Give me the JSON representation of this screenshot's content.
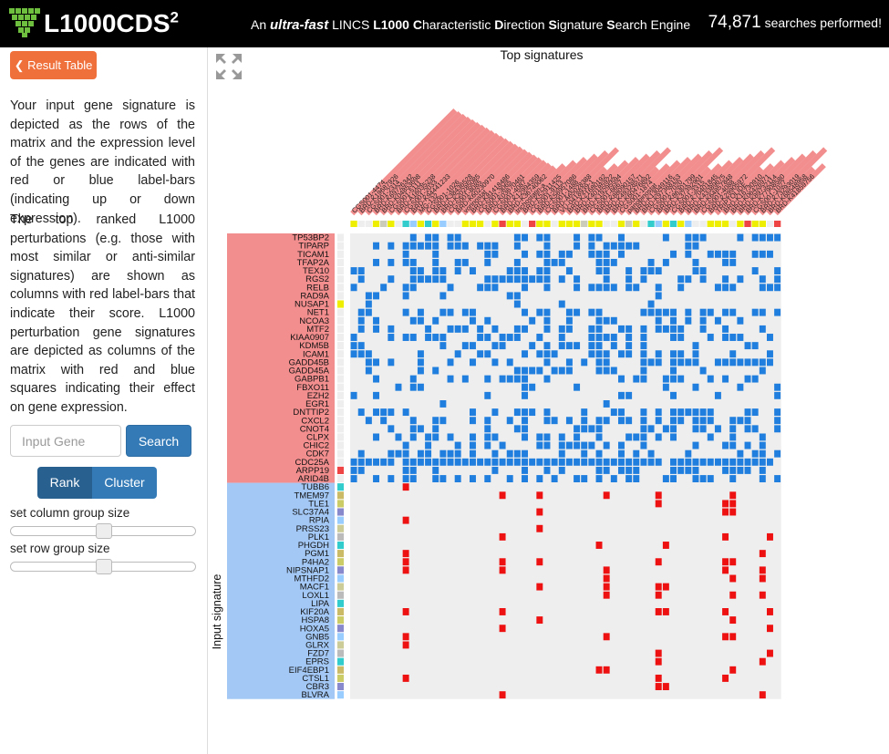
{
  "header": {
    "app_name": "L1000CDS",
    "app_name_sup": "2",
    "tagline": {
      "an": "An ",
      "ultra_fast": "ultra-fast",
      "lincs": " LINCS ",
      "l1000": "L1000",
      "c": "C",
      "c_rest": "haracteristic ",
      "d": "D",
      "d_rest": "irection ",
      "s": "S",
      "s_rest": "ignature ",
      "s2": "S",
      "s2_rest": "earch Engine"
    },
    "search_count": "74,871",
    "search_count_label": " searches performed!"
  },
  "sidebar": {
    "result_button": "Result Table",
    "description_1": "Your input gene signature is depicted as the rows of the matrix and the expression level of the genes are indicated with red or blue label-bars (indicating up or down expression).",
    "description_2": "The top ranked L1000 perturbations (e.g. those with most similar or anti-similar signatures) are shown as columns with red label-bars that indicate their score. L1000 perturbation gene signatures are depicted as columns of the matrix with red and blue squares indicating their effect on gene expression.",
    "gene_input_placeholder": "Input Gene",
    "search_button": "Search",
    "rank_button": "Rank",
    "cluster_button": "Cluster",
    "column_group_label": "set column group size",
    "row_group_label": "set row group size"
  },
  "colors": {
    "up": "#f28e8e",
    "down": "#a3c8f5",
    "cell_red": "#ee1111",
    "cell_blue": "#1f7ede",
    "cell_empty": "#eeeeee"
  },
  "main": {
    "plot_title": "Top signatures",
    "input_signature_label": "Input signature",
    "up_genes": [
      "TP53BP2",
      "TIPARP",
      "TICAM1",
      "TFAP2A",
      "TEX10",
      "RGS2",
      "RELB",
      "RAD9A",
      "NUSAP1",
      "NET1",
      "NCOA3",
      "MTF2",
      "KIAA0907",
      "KDM5B",
      "ICAM1",
      "GADD45B",
      "GADD45A",
      "GABPB1",
      "FBXO11",
      "EZH2",
      "EGR1",
      "DNTTIP2",
      "CXCL2",
      "CNOT4",
      "CLPX",
      "CHIC2",
      "CDK7",
      "CDC25A",
      "ARPP19",
      "ARID4B"
    ],
    "down_genes": [
      "TUBB6",
      "TMEM97",
      "TLE1",
      "SLC37A4",
      "RPIA",
      "PRSS23",
      "PLK1",
      "PHGDH",
      "PGM1",
      "P4HA2",
      "NIPSNAP1",
      "MTHFD2",
      "MACF1",
      "LOXL1",
      "LIPA",
      "KIF20A",
      "HSPA8",
      "HOXA5",
      "GNB5",
      "GLRX",
      "FZD7",
      "EPRS",
      "EIF4EBP1",
      "CTSL1",
      "CBR3",
      "BLVRA"
    ],
    "column_labels": [
      "CGS001-4474",
      "BRD-K19687926",
      "CGS001-2314",
      "BRD-K69726342",
      "BRD-K04853698",
      "CGS001-5111",
      "BRD-A16035238",
      "CGS001-2033",
      "BRD-K94441233",
      "MG-132",
      "CGS001-1026",
      "BRD-K38436528",
      "BRD-K20285085",
      "CGS001-8085",
      "BRD-K60230970",
      "vorinostat",
      "BRD-K81418486",
      "CGS001-3065",
      "BRD-K03670461",
      "CGS001-4087",
      "BRD-K12994359",
      "BRD-K36740062",
      "trichostatin-a",
      "BRD-K52911425",
      "CGS001-9113",
      "BRD-K56957086",
      "CGS001-1488",
      "BRD-A65028388",
      "VU-0418939-1",
      "BRD-K21680192",
      "BRD-K40185922",
      "BRD-K19295594",
      "CGS001-6667",
      "BRD-K88090157",
      "BRD-K49328571",
      "BRD-K60476892",
      "CGS001-1874",
      "panobinostat",
      "BRD-K13049116",
      "BRD-K97368153",
      "CGS001-7020",
      "BRD-K86301799",
      "BRD-K37392901",
      "CGS001-3315",
      "BRD-K70401845",
      "BRD-K43389675",
      "BRD-K64857848",
      "CGS001-4088",
      "BRD-K29905972",
      "TRIPTOLIDE",
      "BRD-K16730910",
      "BRD-K06426971",
      "BRD-K89732114",
      "BRD-K77908580",
      "CGS001-1027",
      "BRD-K73293019",
      "BRD-K68548958",
      "BRD-K41859756"
    ]
  }
}
